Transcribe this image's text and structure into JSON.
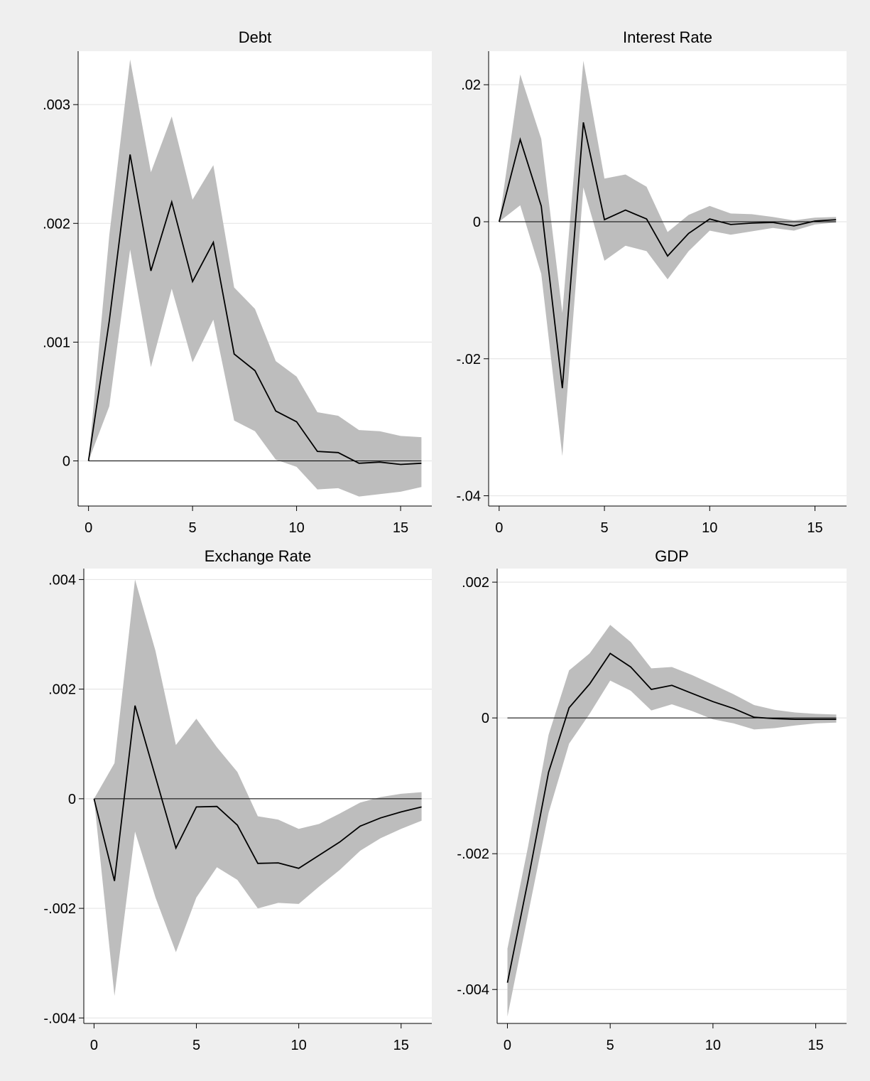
{
  "chart_data": [
    {
      "type": "line",
      "title": "Debt",
      "x": [
        0,
        1,
        2,
        3,
        4,
        5,
        6,
        7,
        8,
        9,
        10,
        11,
        12,
        13,
        14,
        15,
        16
      ],
      "xlim": [
        -0.5,
        16.5
      ],
      "xticks": [
        0,
        5,
        10,
        15
      ],
      "xtick_labels": [
        "0",
        "5",
        "10",
        "15"
      ],
      "ylim": [
        -0.00038,
        0.00345
      ],
      "yticks": [
        0,
        0.001,
        0.002,
        0.003
      ],
      "ytick_labels": [
        "0",
        ".001",
        ".002",
        ".003"
      ],
      "grid": true,
      "series": [
        {
          "role": "estimate",
          "values": [
            0,
            0.00118,
            0.00258,
            0.0016,
            0.00218,
            0.00151,
            0.00184,
            0.0009,
            0.00076,
            0.00042,
            0.00033,
            8e-05,
            7e-05,
            -2e-05,
            -1e-05,
            -3e-05,
            -2e-05
          ]
        },
        {
          "role": "lower",
          "values": [
            0,
            0.00046,
            0.00178,
            0.00079,
            0.00145,
            0.00083,
            0.00119,
            0.00034,
            0.00025,
            1e-05,
            -5e-05,
            -0.00024,
            -0.00023,
            -0.0003,
            -0.00028,
            -0.00026,
            -0.00022
          ]
        },
        {
          "role": "upper",
          "values": [
            0,
            0.0019,
            0.00338,
            0.00243,
            0.0029,
            0.0022,
            0.00249,
            0.00146,
            0.00128,
            0.00084,
            0.00071,
            0.00041,
            0.00038,
            0.00026,
            0.00025,
            0.00021,
            0.0002
          ]
        }
      ]
    },
    {
      "type": "line",
      "title": "Interest Rate",
      "x": [
        0,
        1,
        2,
        3,
        4,
        5,
        6,
        7,
        8,
        9,
        10,
        11,
        12,
        13,
        14,
        15,
        16
      ],
      "xlim": [
        -0.5,
        16.5
      ],
      "xticks": [
        0,
        5,
        10,
        15
      ],
      "xtick_labels": [
        "0",
        "5",
        "10",
        "15"
      ],
      "ylim": [
        -0.0415,
        0.0249
      ],
      "yticks": [
        -0.04,
        -0.02,
        0,
        0.02
      ],
      "ytick_labels": [
        "-.04",
        "-.02",
        "0",
        ".02"
      ],
      "grid": true,
      "series": [
        {
          "role": "estimate",
          "values": [
            0,
            0.012,
            0.0023,
            -0.0243,
            0.0145,
            0.0003,
            0.0017,
            0.0004,
            -0.005,
            -0.0017,
            0.0004,
            -0.0004,
            -0.0002,
            -0.0001,
            -0.0006,
            0.0001,
            0.0003
          ]
        },
        {
          "role": "lower",
          "values": [
            0,
            0.0024,
            -0.0076,
            -0.0342,
            0.005,
            -0.0057,
            -0.0035,
            -0.0043,
            -0.0084,
            -0.0043,
            -0.0013,
            -0.0019,
            -0.0014,
            -0.0009,
            -0.0013,
            -0.0004,
            -0.0001
          ]
        },
        {
          "role": "upper",
          "values": [
            0,
            0.0215,
            0.0121,
            -0.0133,
            0.0235,
            0.0063,
            0.0069,
            0.0051,
            -0.0015,
            0.001,
            0.0023,
            0.0012,
            0.0011,
            0.0007,
            0.0002,
            0.0006,
            0.0007
          ]
        }
      ]
    },
    {
      "type": "line",
      "title": "Exchange Rate",
      "x": [
        0,
        1,
        2,
        3,
        4,
        5,
        6,
        7,
        8,
        9,
        10,
        11,
        12,
        13,
        14,
        15,
        16
      ],
      "xlim": [
        -0.5,
        16.5
      ],
      "xticks": [
        0,
        5,
        10,
        15
      ],
      "xtick_labels": [
        "0",
        "5",
        "10",
        "15"
      ],
      "ylim": [
        -0.0041,
        0.0042
      ],
      "yticks": [
        -0.004,
        -0.002,
        0,
        0.002,
        0.004
      ],
      "ytick_labels": [
        "-.004",
        "-.002",
        "0",
        ".002",
        ".004"
      ],
      "grid": true,
      "series": [
        {
          "role": "estimate",
          "values": [
            0,
            -0.0015,
            0.0017,
            0.0004,
            -0.0009,
            -0.00015,
            -0.00014,
            -0.00048,
            -0.00118,
            -0.00117,
            -0.00127,
            -0.00103,
            -0.00079,
            -0.0005,
            -0.00035,
            -0.00024,
            -0.00015
          ]
        },
        {
          "role": "lower",
          "values": [
            0,
            -0.0036,
            -0.0006,
            -0.0018,
            -0.0028,
            -0.0018,
            -0.00125,
            -0.00148,
            -0.002,
            -0.0019,
            -0.00192,
            -0.0016,
            -0.0013,
            -0.00095,
            -0.00072,
            -0.00055,
            -0.0004
          ]
        },
        {
          "role": "upper",
          "values": [
            0,
            0.00065,
            0.004,
            0.0027,
            0.00098,
            0.00146,
            0.00094,
            0.00049,
            -0.00032,
            -0.00038,
            -0.00055,
            -0.00046,
            -0.00027,
            -7e-05,
            3e-05,
            9e-05,
            0.00012
          ]
        }
      ]
    },
    {
      "type": "line",
      "title": "GDP",
      "x": [
        0,
        1,
        2,
        3,
        4,
        5,
        6,
        7,
        8,
        9,
        10,
        11,
        12,
        13,
        14,
        15,
        16
      ],
      "xlim": [
        -0.5,
        16.5
      ],
      "xticks": [
        0,
        5,
        10,
        15
      ],
      "xtick_labels": [
        "0",
        "5",
        "10",
        "15"
      ],
      "ylim": [
        -0.0045,
        0.0022
      ],
      "yticks": [
        -0.004,
        -0.002,
        0,
        0.002
      ],
      "ytick_labels": [
        "-.004",
        "-.002",
        "0",
        ".002"
      ],
      "grid": true,
      "series": [
        {
          "role": "estimate",
          "values": [
            -0.0039,
            -0.0024,
            -0.0008,
            0.00015,
            0.0005,
            0.00095,
            0.00075,
            0.00042,
            0.00048,
            0.00036,
            0.00024,
            0.00014,
            1e-05,
            -1e-05,
            -2e-05,
            -2e-05,
            -2e-05
          ]
        },
        {
          "role": "lower",
          "values": [
            -0.0044,
            -0.0029,
            -0.0014,
            -0.00038,
            6e-05,
            0.00055,
            0.0004,
            0.00011,
            0.0002,
            0.0001,
            -2e-05,
            -8e-05,
            -0.00017,
            -0.00015,
            -0.00011,
            -8e-05,
            -7e-05
          ]
        },
        {
          "role": "upper",
          "values": [
            -0.0034,
            -0.0019,
            -0.00025,
            0.0007,
            0.00095,
            0.00137,
            0.00112,
            0.00073,
            0.00075,
            0.00063,
            0.00049,
            0.00035,
            0.00019,
            0.00012,
            8e-05,
            6e-05,
            5e-05
          ]
        }
      ]
    }
  ]
}
